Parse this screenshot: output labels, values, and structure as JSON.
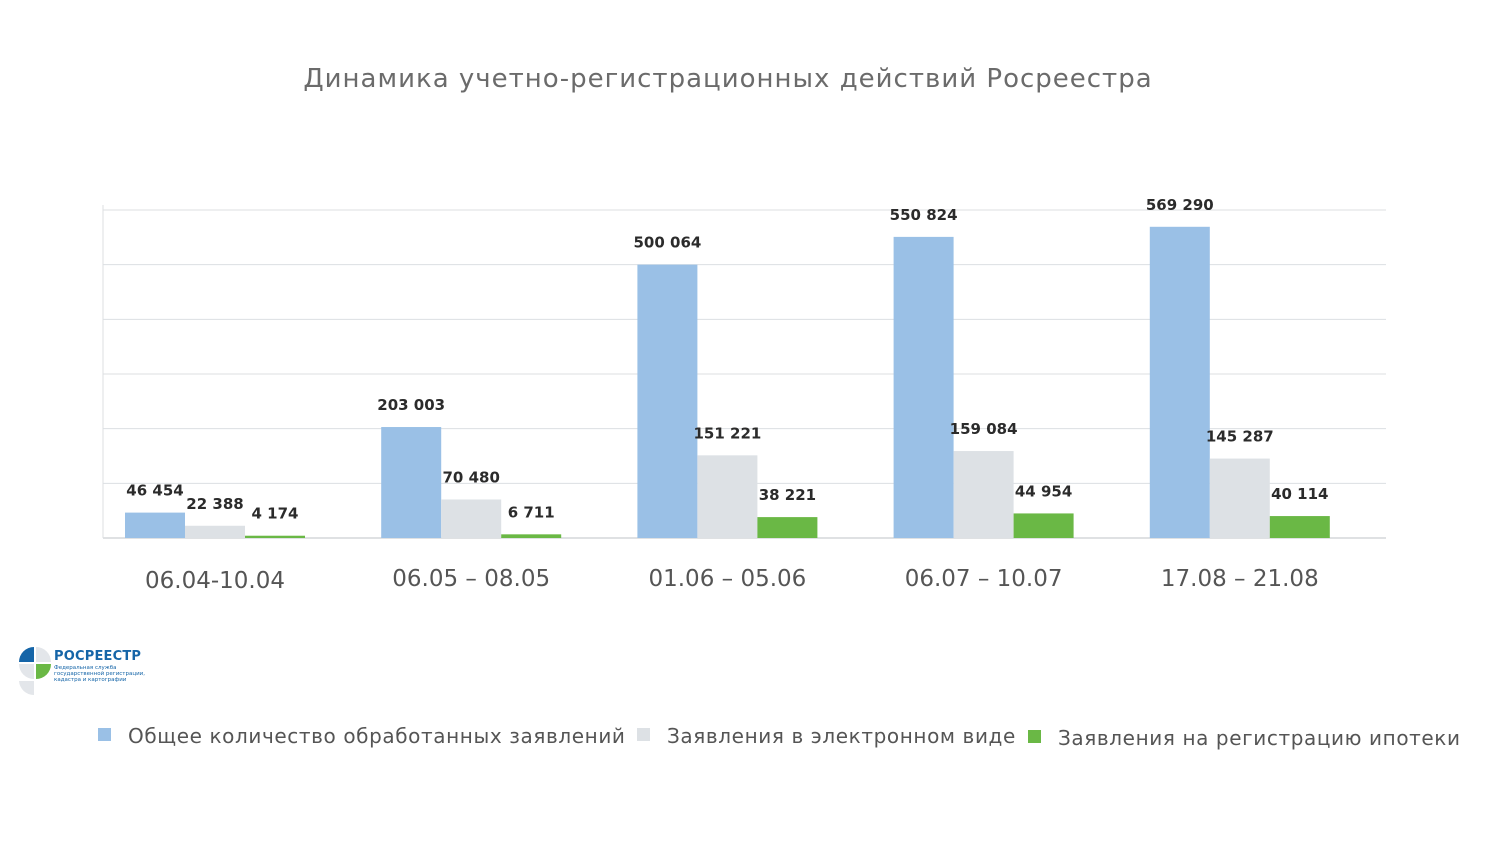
{
  "chart_data": {
    "type": "bar",
    "title": "Динамика учетно-регистрационных действий Росреестра",
    "categories": [
      "06.04-10.04",
      "06.05 – 08.05",
      "01.06 – 05.06",
      "06.07 – 10.07",
      "17.08 – 21.08"
    ],
    "series": [
      {
        "name": "Общее количество обработанных заявлений",
        "color": "#9ac0e6",
        "values": [
          46454,
          203003,
          500064,
          550824,
          569290
        ],
        "labels": [
          "46 454",
          "203 003",
          "500 064",
          "550 824",
          "569 290"
        ]
      },
      {
        "name": "Заявления в электронном виде",
        "color": "#dde1e5",
        "values": [
          22388,
          70480,
          151221,
          159084,
          145287
        ],
        "labels": [
          "22 388",
          "70 480",
          "151 221",
          "159 084",
          "145 287"
        ]
      },
      {
        "name": "Заявления на регистрацию ипотеки",
        "color": "#6ab845",
        "values": [
          4174,
          6711,
          38221,
          44954,
          40114
        ],
        "labels": [
          "4 174",
          "6 711",
          "38 221",
          "44 954",
          "40 114"
        ]
      }
    ],
    "ylim": [
      0,
      600000
    ],
    "gridlines": [
      0,
      100000,
      200000,
      300000,
      400000,
      500000,
      600000
    ],
    "y_tick_labels_shown": false,
    "grid": true,
    "legend_position": "bottom"
  },
  "logo": {
    "name": "РОСРЕЕСТР",
    "subtitle_lines": [
      "Федеральная служба",
      "государственной регистрации,",
      "кадастра и картографии"
    ],
    "colors": [
      "#1565a8",
      "#6ab845",
      "#e3e6ea"
    ]
  }
}
